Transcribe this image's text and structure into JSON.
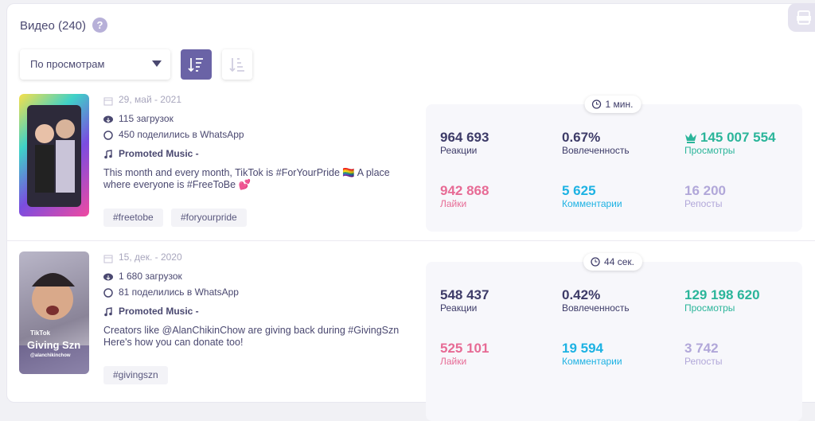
{
  "header": {
    "title": "Видео (240)",
    "help": "?"
  },
  "controls": {
    "sort": "По просмотрам"
  },
  "videos": [
    {
      "thumbnail_text": [],
      "date": "29, май - 2021",
      "downloads": "115 загрузок",
      "shares": "450 поделились в WhatsApp",
      "music": "Promoted Music -",
      "description": [
        "This month and every month, TikTok is #ForYourPride 🏳️‍🌈 A place",
        "where everyone is #FreeToBe 💕"
      ],
      "tags": [
        "#freetobe",
        "#foryourpride"
      ],
      "duration": "1 мин.",
      "stats": [
        {
          "value": "964 693",
          "label": "Реакции"
        },
        {
          "value": "0.67%",
          "label": "Вовлеченность"
        },
        {
          "value": "145 007 554",
          "label": "Просмотры"
        },
        {
          "value": "942 868",
          "label": "Лайки"
        },
        {
          "value": "5 625",
          "label": "Комментарии"
        },
        {
          "value": "16 200",
          "label": "Репосты"
        }
      ]
    },
    {
      "thumbnail_text": [
        "TikTok",
        "Giving Szn",
        "@alanchikinchow"
      ],
      "date": "15, дек. - 2020",
      "downloads": "1 680 загрузок",
      "shares": "81 поделились в WhatsApp",
      "music": "Promoted Music -",
      "description": [
        "Creators like @AlanChikinChow are giving back during #GivingSzn",
        "Here's how you can donate too!"
      ],
      "tags": [
        "#givingszn"
      ],
      "duration": "44 сек.",
      "stats": [
        {
          "value": "548 437",
          "label": "Реакции"
        },
        {
          "value": "0.42%",
          "label": "Вовлеченность"
        },
        {
          "value": "129 198 620",
          "label": "Просмотры"
        },
        {
          "value": "525 101",
          "label": "Лайки"
        },
        {
          "value": "19 594",
          "label": "Комментарии"
        },
        {
          "value": "3 742",
          "label": "Репосты"
        }
      ]
    }
  ]
}
